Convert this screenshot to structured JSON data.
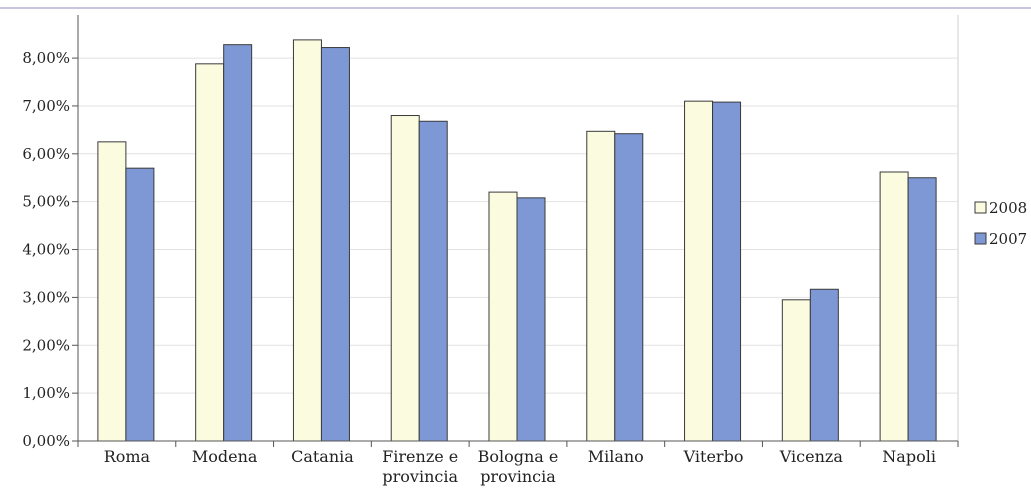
{
  "chart_data": {
    "type": "bar",
    "categories": [
      [
        "Roma"
      ],
      [
        "Modena"
      ],
      [
        "Catania"
      ],
      [
        "Firenze e",
        "provincia"
      ],
      [
        "Bologna e",
        "provincia"
      ],
      [
        "Milano"
      ],
      [
        "Viterbo"
      ],
      [
        "Vicenza"
      ],
      [
        "Napoli"
      ]
    ],
    "series": [
      {
        "name": "2008",
        "color": "#fbfbe0",
        "values": [
          6.25,
          7.88,
          8.38,
          6.8,
          5.2,
          6.47,
          7.1,
          2.95,
          5.62
        ]
      },
      {
        "name": "2007",
        "color": "#7d98d4",
        "values": [
          5.7,
          8.28,
          8.22,
          6.68,
          5.08,
          6.42,
          7.08,
          3.17,
          5.5
        ]
      }
    ],
    "yticks": [
      "0,00%",
      "1,00%",
      "2,00%",
      "3,00%",
      "4,00%",
      "5,00%",
      "6,00%",
      "7,00%",
      "8,00%"
    ],
    "ylim": [
      0,
      8.9
    ],
    "grid": true,
    "legend_position": "right"
  }
}
